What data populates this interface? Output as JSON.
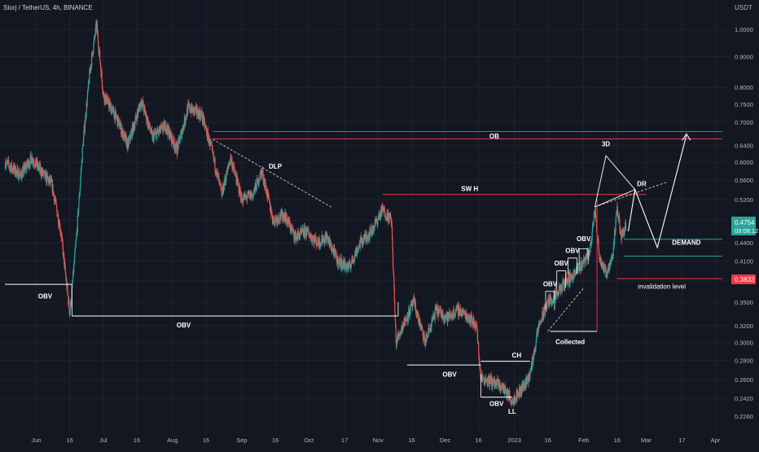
{
  "symbol_line": "Storj / TetherUS, 4h, BINANCE",
  "currency": "USDT",
  "colors": {
    "background": "#131722",
    "grid": "#1e222d",
    "up": "#26a69a",
    "down": "#ef5350",
    "last_price": "#26a69a",
    "invalidation": "#f23645",
    "annotation": "#ffffff",
    "ob_line": "#f23645",
    "demand_line": "#26a69a"
  },
  "price_labels": {
    "last_price": "0.4754",
    "countdown": "03:08:12",
    "invalidation_price": "0.3833"
  },
  "annotations": {
    "ob": "OB",
    "sw_h": "SW H",
    "dlp": "DLP",
    "three_d": "3D",
    "dr": "DR",
    "demand": "DEMAND",
    "invalidation": "invalidation level",
    "collected": "Collected",
    "ch": "CH",
    "ll": "LL",
    "obv": "OBV"
  },
  "chart_data": {
    "type": "candlestick",
    "title": "Storj / TetherUS, 4h, BINANCE",
    "y_scale": "log",
    "ylim": [
      0.21,
      1.07
    ],
    "y_ticks": [
      1.0,
      0.9,
      0.8,
      0.75,
      0.7,
      0.64,
      0.6,
      0.56,
      0.52,
      0.48,
      0.44,
      0.41,
      0.38,
      0.35,
      0.32,
      0.3,
      0.28,
      0.26,
      0.242,
      0.226
    ],
    "y_tick_labels": [
      "1.0000",
      "0.9000",
      "0.8000",
      "0.7500",
      "0.7000",
      "0.6400",
      "0.6000",
      "0.5600",
      "0.5200",
      "0.4800",
      "0.4400",
      "0.4100",
      "0.3800",
      "0.3500",
      "0.3200",
      "0.3000",
      "0.2800",
      "0.2600",
      "0.2420",
      "0.2260"
    ],
    "x_ticks": [
      "Jun",
      "16",
      "Jul",
      "16",
      "Aug",
      "16",
      "Sep",
      "16",
      "Oct",
      "17",
      "Nov",
      "16",
      "Dec",
      "16",
      "2023",
      "16",
      "Feb",
      "16",
      "Mar",
      "17",
      "Apr"
    ],
    "x_tick_dates": [
      "2022-06-01",
      "2022-06-16",
      "2022-07-01",
      "2022-07-16",
      "2022-08-01",
      "2022-08-16",
      "2022-09-01",
      "2022-09-16",
      "2022-10-01",
      "2022-10-17",
      "2022-11-01",
      "2022-11-16",
      "2022-12-01",
      "2022-12-16",
      "2023-01-01",
      "2023-01-16",
      "2023-02-01",
      "2023-02-16",
      "2023-03-01",
      "2023-03-17",
      "2023-04-01"
    ],
    "price_path": [
      [
        "2022-05-18",
        0.6
      ],
      [
        "2022-05-25",
        0.57
      ],
      [
        "2022-05-30",
        0.61
      ],
      [
        "2022-06-03",
        0.58
      ],
      [
        "2022-06-08",
        0.55
      ],
      [
        "2022-06-12",
        0.46
      ],
      [
        "2022-06-16",
        0.335
      ],
      [
        "2022-06-19",
        0.45
      ],
      [
        "2022-06-22",
        0.65
      ],
      [
        "2022-06-25",
        0.85
      ],
      [
        "2022-06-28",
        1.02
      ],
      [
        "2022-07-01",
        0.78
      ],
      [
        "2022-07-07",
        0.71
      ],
      [
        "2022-07-12",
        0.64
      ],
      [
        "2022-07-18",
        0.76
      ],
      [
        "2022-07-23",
        0.66
      ],
      [
        "2022-07-29",
        0.69
      ],
      [
        "2022-08-03",
        0.63
      ],
      [
        "2022-08-08",
        0.74
      ],
      [
        "2022-08-14",
        0.72
      ],
      [
        "2022-08-18",
        0.64
      ],
      [
        "2022-08-23",
        0.53
      ],
      [
        "2022-08-27",
        0.61
      ],
      [
        "2022-09-01",
        0.52
      ],
      [
        "2022-09-06",
        0.53
      ],
      [
        "2022-09-10",
        0.58
      ],
      [
        "2022-09-15",
        0.48
      ],
      [
        "2022-09-20",
        0.49
      ],
      [
        "2022-09-25",
        0.45
      ],
      [
        "2022-09-30",
        0.46
      ],
      [
        "2022-10-05",
        0.44
      ],
      [
        "2022-10-09",
        0.45
      ],
      [
        "2022-10-14",
        0.41
      ],
      [
        "2022-10-19",
        0.4
      ],
      [
        "2022-10-24",
        0.44
      ],
      [
        "2022-10-29",
        0.46
      ],
      [
        "2022-11-03",
        0.5
      ],
      [
        "2022-11-07",
        0.48
      ],
      [
        "2022-11-09",
        0.3
      ],
      [
        "2022-11-12",
        0.32
      ],
      [
        "2022-11-17",
        0.35
      ],
      [
        "2022-11-22",
        0.3
      ],
      [
        "2022-11-27",
        0.34
      ],
      [
        "2022-12-02",
        0.33
      ],
      [
        "2022-12-07",
        0.34
      ],
      [
        "2022-12-12",
        0.33
      ],
      [
        "2022-12-15",
        0.32
      ],
      [
        "2022-12-17",
        0.262
      ],
      [
        "2022-12-22",
        0.258
      ],
      [
        "2022-12-27",
        0.252
      ],
      [
        "2022-12-31",
        0.24
      ],
      [
        "2023-01-04",
        0.25
      ],
      [
        "2023-01-08",
        0.265
      ],
      [
        "2023-01-12",
        0.32
      ],
      [
        "2023-01-16",
        0.35
      ],
      [
        "2023-01-20",
        0.36
      ],
      [
        "2023-01-24",
        0.38
      ],
      [
        "2023-01-28",
        0.39
      ],
      [
        "2023-02-01",
        0.41
      ],
      [
        "2023-02-04",
        0.43
      ],
      [
        "2023-02-06",
        0.5
      ],
      [
        "2023-02-08",
        0.42
      ],
      [
        "2023-02-11",
        0.39
      ],
      [
        "2023-02-14",
        0.42
      ],
      [
        "2023-02-16",
        0.5
      ],
      [
        "2023-02-18",
        0.45
      ],
      [
        "2023-02-20",
        0.4754
      ]
    ],
    "lines": [
      {
        "label": "OB",
        "y": 0.675,
        "from": "2022-08-19",
        "to": "2023-04-04",
        "style": "solid",
        "color": "red"
      },
      {
        "label": "",
        "y": 0.656,
        "from": "2022-08-19",
        "to": "2023-04-04",
        "style": "solid",
        "color": "red"
      },
      {
        "label": "SW H",
        "y": 0.53,
        "from": "2022-11-03",
        "to": "2023-03-01",
        "style": "solid",
        "color": "red"
      },
      {
        "label": "DEMAND",
        "y": 0.446,
        "from": "2023-02-19",
        "to": "2023-04-04",
        "style": "solid",
        "color": "green"
      },
      {
        "label": "",
        "y": 0.418,
        "from": "2023-02-19",
        "to": "2023-04-04",
        "style": "solid",
        "color": "green"
      },
      {
        "label": "invalidation level",
        "y": 0.3833,
        "from": "2023-02-16",
        "to": "2023-04-04",
        "style": "solid",
        "color": "red"
      },
      {
        "label": "OBV",
        "y": 0.375,
        "from": "2022-05-18",
        "to": "2022-06-17",
        "style": "solid",
        "color": "white"
      },
      {
        "label": "OBV",
        "y": 0.332,
        "from": "2022-06-17",
        "to": "2022-11-10",
        "style": "solid",
        "color": "white"
      },
      {
        "label": "OBV",
        "y": 0.275,
        "from": "2022-11-14",
        "to": "2022-12-17",
        "style": "solid",
        "color": "white"
      },
      {
        "label": "CH",
        "y": 0.279,
        "from": "2022-12-17",
        "to": "2023-01-08",
        "style": "solid",
        "color": "white"
      },
      {
        "label": "OBV",
        "y": 0.243,
        "from": "2022-12-17",
        "to": "2022-12-31",
        "style": "solid",
        "color": "white"
      },
      {
        "label": "Collected",
        "y": 0.313,
        "from": "2023-01-17",
        "to": "2023-02-07",
        "style": "solid",
        "color": "white"
      }
    ]
  }
}
